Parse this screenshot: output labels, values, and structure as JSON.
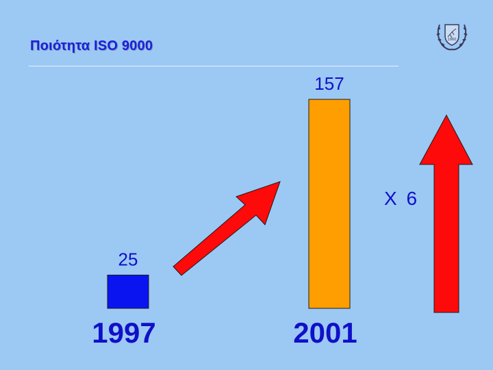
{
  "slide": {
    "title": "Ποιότητα ISO 9000",
    "multiplier_label": "X 6"
  },
  "colors": {
    "background": "#9cc8f4",
    "title": "#1f1fd6",
    "label": "#1010c8",
    "arrow": "#ff0a0a"
  },
  "icons": {
    "emblem": "cyprus-coat-of-arms-icon"
  },
  "chart_data": {
    "type": "bar",
    "categories": [
      "1997",
      "2001"
    ],
    "values": [
      25,
      157
    ],
    "bar_colors": [
      "#0a14f0",
      "#ff9e00"
    ],
    "ylim": [
      0,
      157
    ],
    "grid": false,
    "axes_visible": false
  }
}
